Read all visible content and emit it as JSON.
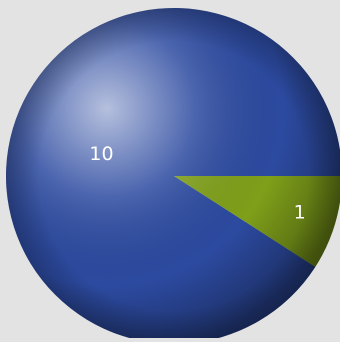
{
  "chart_data": {
    "type": "pie",
    "categories": [
      "",
      ""
    ],
    "values": [
      10,
      1
    ],
    "data_labels": [
      "10",
      "1"
    ],
    "colors": [
      "#2c4aa0",
      "#7f9f1a"
    ],
    "title": "",
    "legend": "none",
    "grid": false,
    "style": "glossy 3D sphere"
  }
}
